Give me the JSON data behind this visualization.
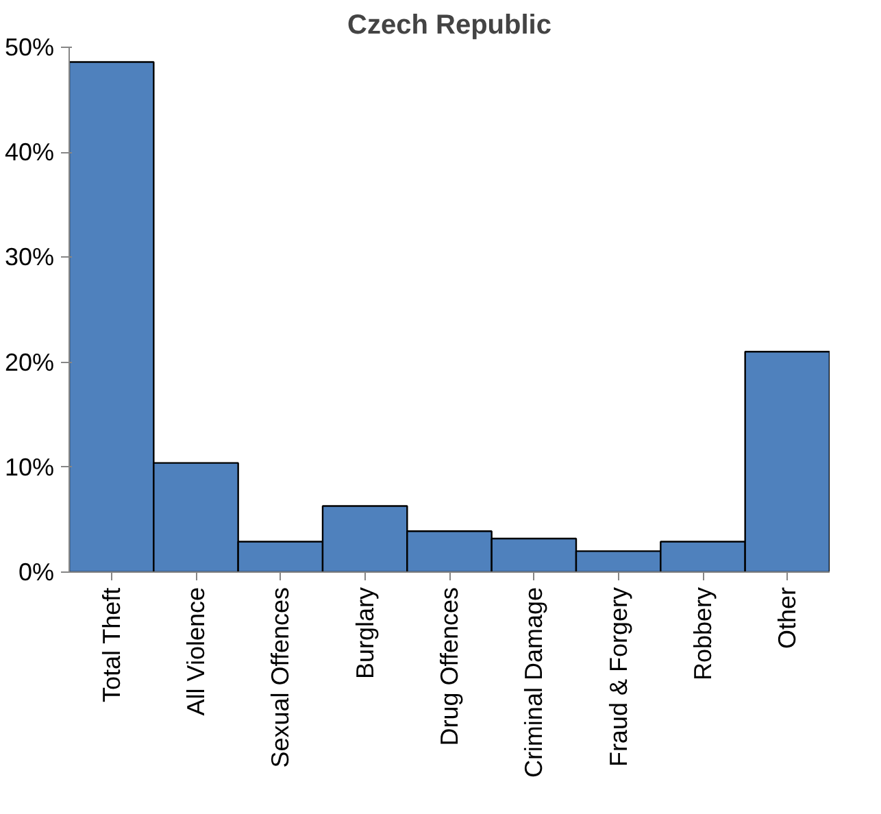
{
  "chart_data": {
    "type": "bar",
    "title": "Czech Republic",
    "categories": [
      "Total Theft",
      "All Violence",
      "Sexual Offences",
      "Burglary",
      "Drug Offences",
      "Criminal Damage",
      "Fraud & Forgery",
      "Robbery",
      "Other"
    ],
    "values": [
      48.6,
      10.4,
      2.9,
      6.3,
      3.9,
      3.2,
      2.0,
      2.9,
      21.0
    ],
    "color": "#4f81bd",
    "ylim": [
      0,
      50
    ],
    "yticks": [
      {
        "value": 0,
        "label": "0%"
      },
      {
        "value": 10,
        "label": "10%"
      },
      {
        "value": 20,
        "label": "20%"
      },
      {
        "value": 30,
        "label": "30%"
      },
      {
        "value": 40,
        "label": "40%"
      },
      {
        "value": 50,
        "label": "50%"
      }
    ],
    "grid": false
  }
}
